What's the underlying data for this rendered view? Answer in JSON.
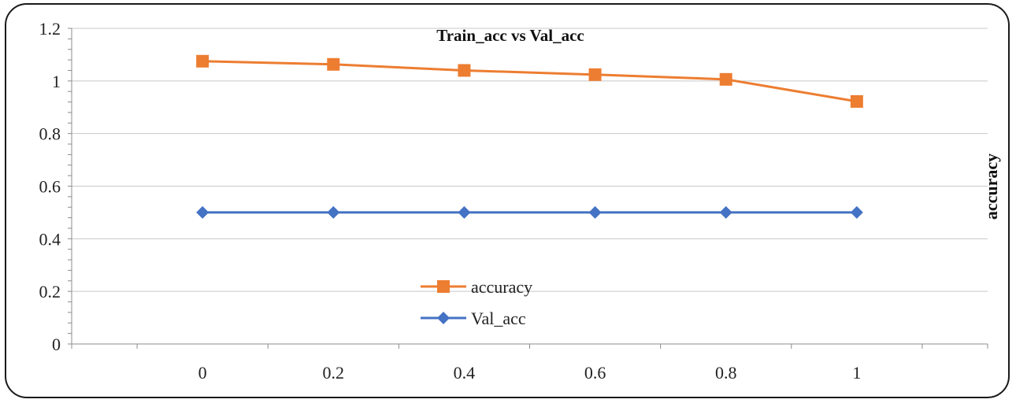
{
  "chart_data": {
    "type": "line",
    "title": "Train_acc vs Val_acc",
    "xlabel": "",
    "ylabel": "accuracy",
    "x": [
      0,
      0.2,
      0.4,
      0.6,
      0.8,
      1
    ],
    "x_tick_labels": [
      "0",
      "0.2",
      "0.4",
      "0.6",
      "0.8",
      "1"
    ],
    "xlim": [
      -0.2,
      1.2
    ],
    "ylim": [
      0,
      1.2
    ],
    "y_ticks": [
      0,
      0.2,
      0.4,
      0.6,
      0.8,
      1,
      1.2
    ],
    "y_tick_labels": [
      "0",
      "0.2",
      "0.4",
      "0.6",
      "0.8",
      "1",
      "1.2"
    ],
    "grid": "horizontal",
    "legend_position": "bottom-center",
    "series": [
      {
        "name": "accuracy",
        "values": [
          1.075,
          1.063,
          1.04,
          1.024,
          1.006,
          0.922
        ],
        "color": "#ED7D31",
        "marker": "square"
      },
      {
        "name": "Val_acc",
        "values": [
          0.5,
          0.5,
          0.5,
          0.5,
          0.5,
          0.5
        ],
        "color": "#4472C4",
        "marker": "diamond"
      }
    ]
  }
}
